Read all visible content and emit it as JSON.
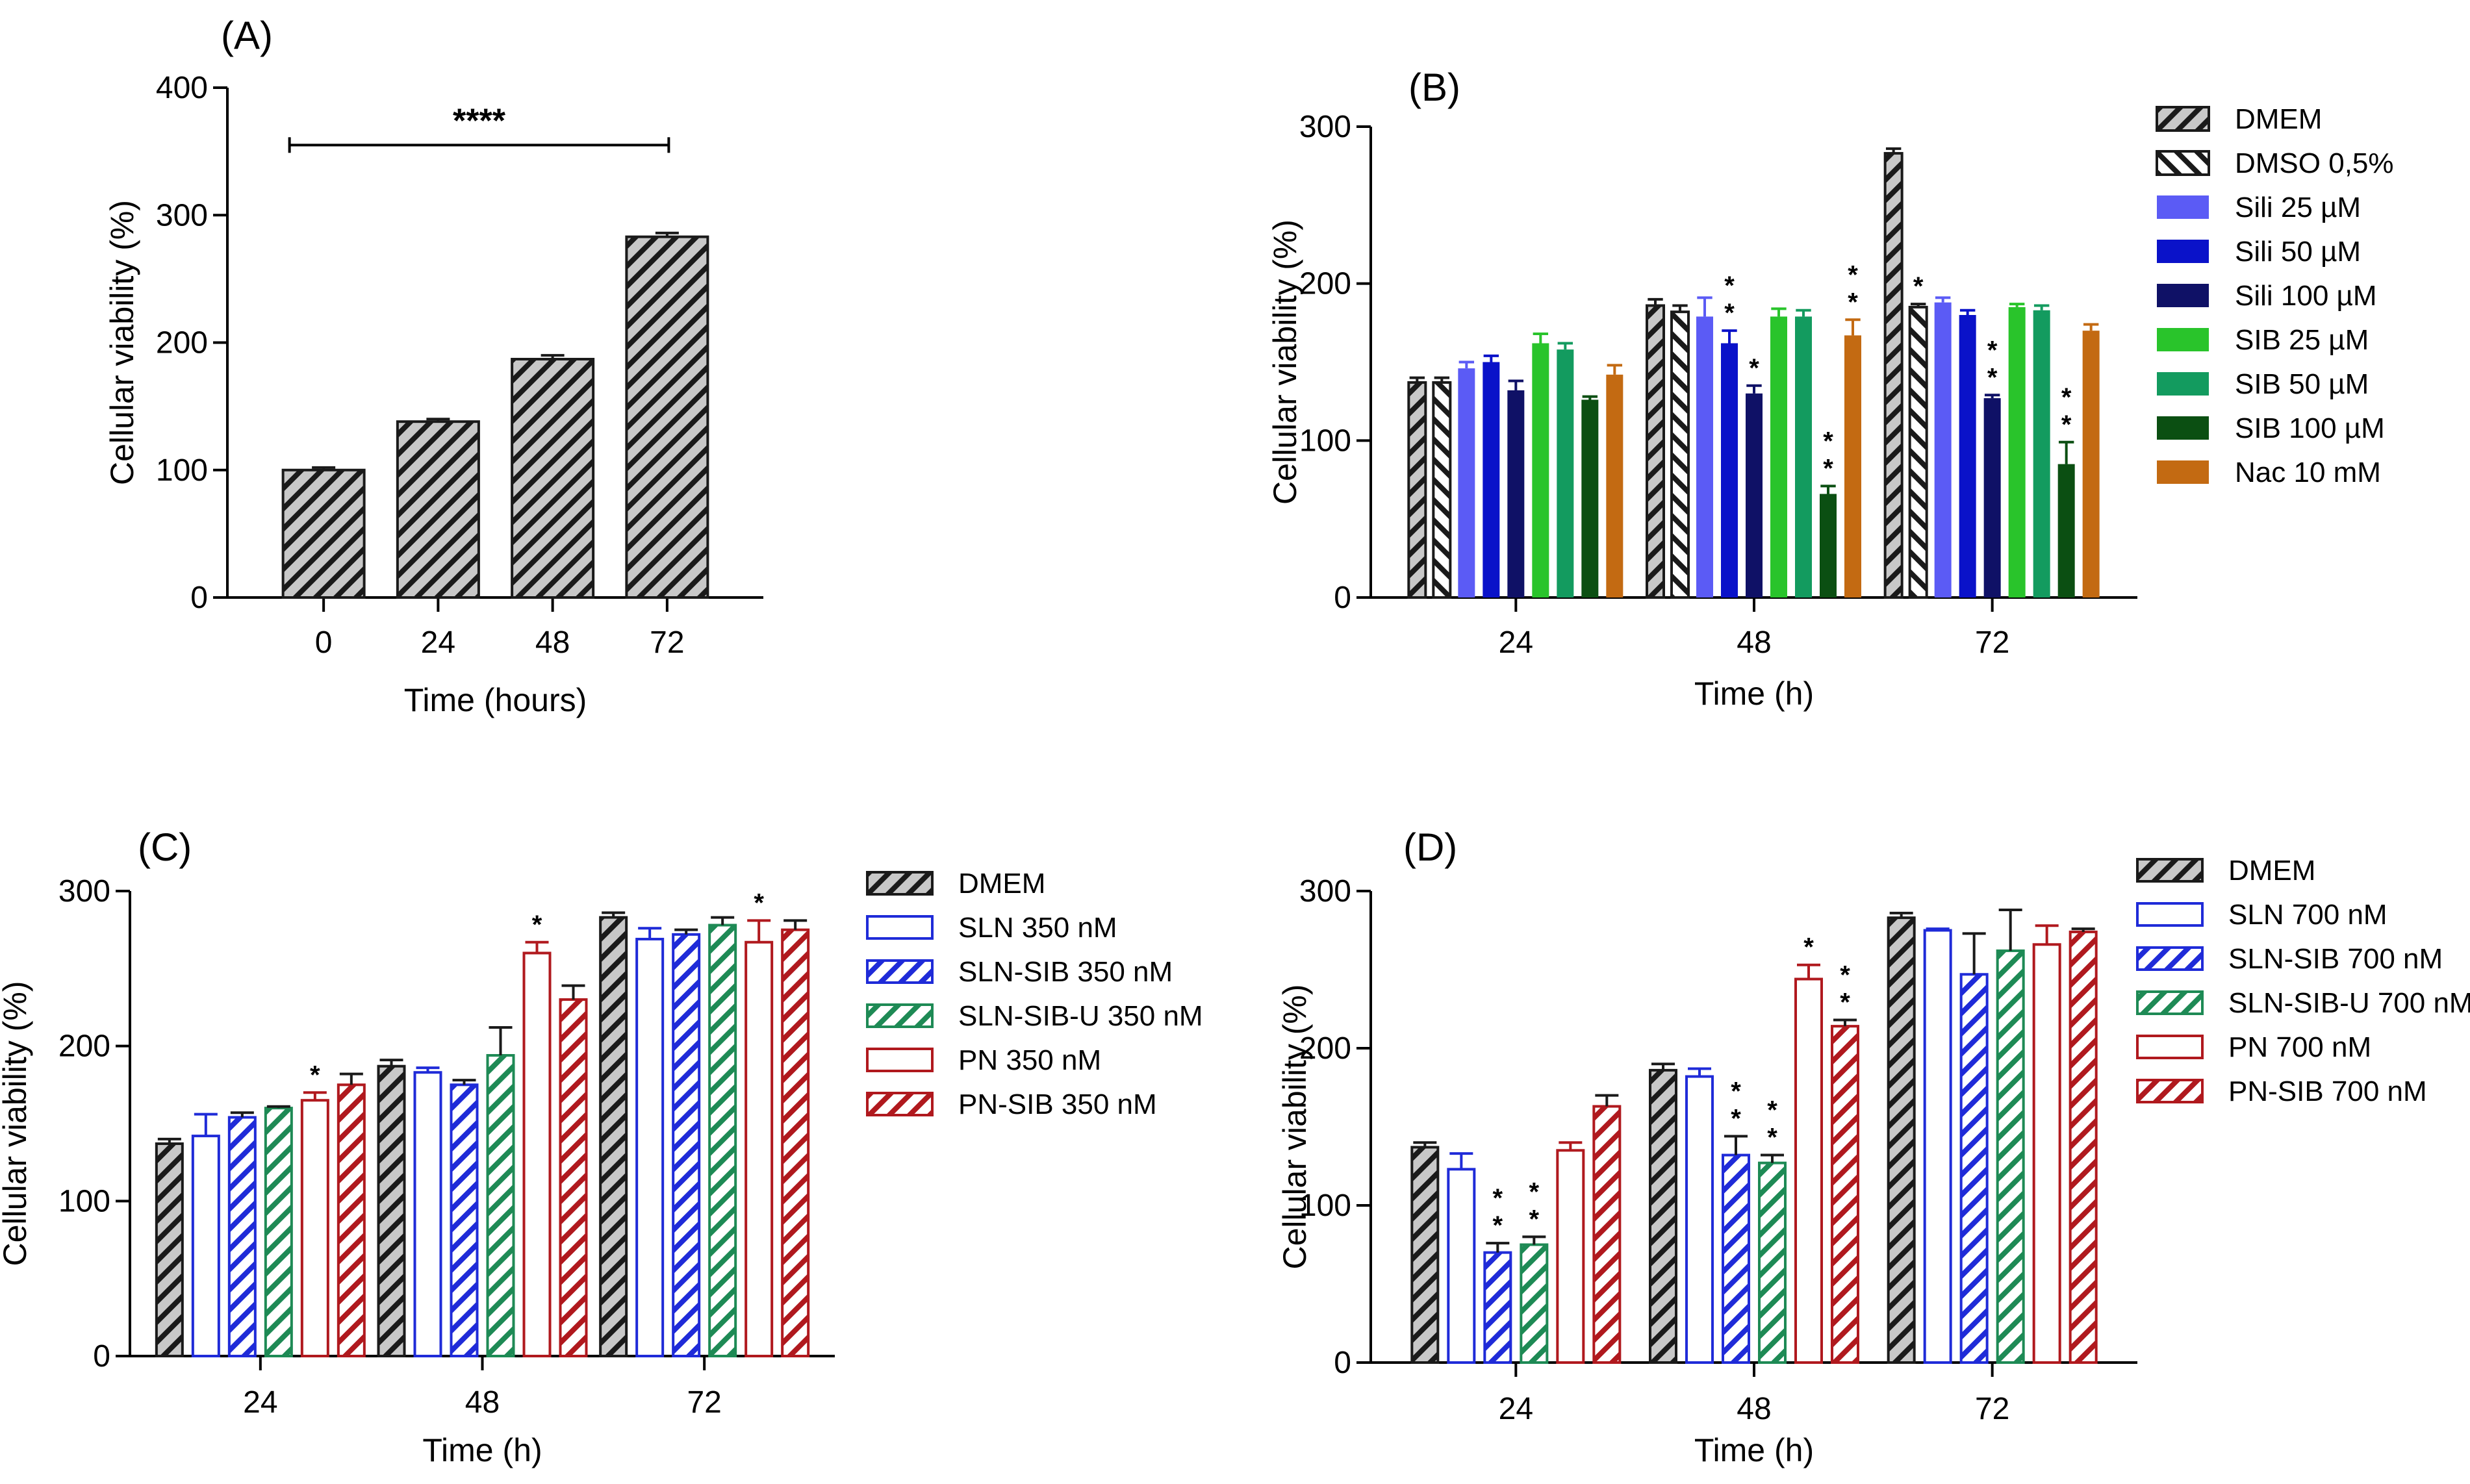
{
  "patterns": {
    "grey_hatch": {
      "bg": "#c8c8c8",
      "line": "#1a1a1a",
      "dir": "fwd"
    },
    "dmso_hatch": {
      "bg": "#ffffff",
      "line": "#1a1a1a",
      "dir": "back"
    },
    "blue_hatch": {
      "bg": "#ffffff",
      "line": "#1f2bd8",
      "dir": "fwd"
    },
    "green_hatch": {
      "bg": "#ffffff",
      "line": "#1e8a55",
      "dir": "fwd"
    },
    "red_hatch": {
      "bg": "#ffffff",
      "line": "#b0191e",
      "dir": "fwd"
    }
  },
  "chart_data": [
    {
      "panel": "(A)",
      "type": "bar",
      "xlabel": "Time (hours)",
      "ylabel": "Cellular viability (%)",
      "ylim": [
        0,
        400
      ],
      "yticks": [
        0,
        100,
        200,
        300,
        400
      ],
      "categories": [
        "0",
        "24",
        "48",
        "72"
      ],
      "series": [
        {
          "name": "",
          "style": "pattern",
          "color": "grey_hatch",
          "values": [
            100,
            138,
            187,
            283
          ],
          "errors": [
            2,
            2,
            3,
            3
          ],
          "stars": [
            0,
            0,
            0,
            0
          ]
        }
      ],
      "bracket": {
        "from": 0,
        "to": 3,
        "value": 355,
        "label": "****"
      }
    },
    {
      "panel": "(B)",
      "type": "bar",
      "xlabel": "Time (h)",
      "ylabel": "Cellular viability (%)",
      "ylim": [
        0,
        300
      ],
      "yticks": [
        0,
        100,
        200,
        300
      ],
      "categories": [
        "24",
        "48",
        "72"
      ],
      "series": [
        {
          "name": "DMEM",
          "style": "pattern",
          "color": "grey_hatch",
          "values": [
            137,
            186,
            283
          ],
          "errors": [
            3,
            4,
            3
          ],
          "stars": [
            0,
            0,
            0
          ]
        },
        {
          "name": "DMSO 0,5%",
          "style": "pattern",
          "color": "dmso_hatch",
          "values": [
            137,
            182,
            185
          ],
          "errors": [
            3,
            4,
            2
          ],
          "stars": [
            0,
            0,
            1
          ]
        },
        {
          "name": "Sili 25 µM",
          "style": "solid",
          "color": "#5b5bf5",
          "values": [
            146,
            179,
            188
          ],
          "errors": [
            4,
            12,
            3
          ],
          "stars": [
            0,
            0,
            0
          ]
        },
        {
          "name": "Sili 50 µM",
          "style": "solid",
          "color": "#0a12c9",
          "values": [
            150,
            162,
            180
          ],
          "errors": [
            4,
            8,
            3
          ],
          "stars": [
            0,
            2,
            0
          ]
        },
        {
          "name": "Sili 100 µM",
          "style": "solid",
          "color": "#0f1166",
          "values": [
            132,
            130,
            127
          ],
          "errors": [
            6,
            5,
            2
          ],
          "stars": [
            0,
            1,
            2
          ]
        },
        {
          "name": "SIB 25 µM",
          "style": "solid",
          "color": "#29c42b",
          "values": [
            162,
            179,
            185
          ],
          "errors": [
            6,
            5,
            2
          ],
          "stars": [
            0,
            0,
            0
          ]
        },
        {
          "name": "SIB 50 µM",
          "style": "solid",
          "color": "#139b5f",
          "values": [
            158,
            179,
            183
          ],
          "errors": [
            4,
            4,
            3
          ],
          "stars": [
            0,
            0,
            0
          ]
        },
        {
          "name": "SIB 100 µM",
          "style": "solid",
          "color": "#0b4f12",
          "values": [
            126,
            66,
            85
          ],
          "errors": [
            2,
            5,
            14
          ],
          "stars": [
            0,
            2,
            2
          ]
        },
        {
          "name": "Nac 10 mM",
          "style": "solid",
          "color": "#c36a12",
          "values": [
            142,
            167,
            170
          ],
          "errors": [
            6,
            10,
            4
          ],
          "stars": [
            0,
            2,
            0
          ]
        }
      ]
    },
    {
      "panel": "(C)",
      "type": "bar",
      "xlabel": "Time (h)",
      "ylabel": "Cellular viability (%)",
      "ylim": [
        0,
        300
      ],
      "yticks": [
        0,
        100,
        200,
        300
      ],
      "categories": [
        "24",
        "48",
        "72"
      ],
      "series": [
        {
          "name": "DMEM",
          "style": "pattern",
          "color": "grey_hatch",
          "values": [
            137,
            187,
            283
          ],
          "errors": [
            3,
            4,
            3
          ],
          "stars": [
            0,
            0,
            0
          ]
        },
        {
          "name": "SLN 350 nM",
          "style": "open",
          "color": "#1f2bd8",
          "values": [
            142,
            183,
            269
          ],
          "errors": [
            14,
            3,
            7
          ],
          "stars": [
            0,
            0,
            0
          ]
        },
        {
          "name": "SLN-SIB 350 nM",
          "style": "pattern",
          "color": "blue_hatch",
          "values": [
            154,
            175,
            272
          ],
          "errors": [
            3,
            3,
            3
          ],
          "stars": [
            0,
            0,
            0
          ]
        },
        {
          "name": "SLN-SIB-U 350 nM",
          "style": "pattern",
          "color": "green_hatch",
          "values": [
            160,
            194,
            278
          ],
          "errors": [
            1,
            18,
            5
          ],
          "stars": [
            0,
            0,
            0
          ]
        },
        {
          "name": "PN 350 nM",
          "style": "open",
          "color": "#b0191e",
          "values": [
            165,
            260,
            267
          ],
          "errors": [
            5,
            7,
            14
          ],
          "stars": [
            1,
            1,
            1
          ]
        },
        {
          "name": "PN-SIB 350 nM",
          "style": "pattern",
          "color": "red_hatch",
          "values": [
            175,
            230,
            275
          ],
          "errors": [
            7,
            9,
            6
          ],
          "stars": [
            0,
            0,
            0
          ]
        }
      ]
    },
    {
      "panel": "(D)",
      "type": "bar",
      "xlabel": "Time (h)",
      "ylabel": "Cellular viability (%)",
      "ylim": [
        0,
        300
      ],
      "yticks": [
        0,
        100,
        200,
        300
      ],
      "categories": [
        "24",
        "48",
        "72"
      ],
      "series": [
        {
          "name": "DMEM",
          "style": "pattern",
          "color": "grey_hatch",
          "values": [
            137,
            186,
            283
          ],
          "errors": [
            3,
            4,
            3
          ],
          "stars": [
            0,
            0,
            0
          ]
        },
        {
          "name": "SLN 700 nM",
          "style": "open",
          "color": "#1f2bd8",
          "values": [
            123,
            182,
            275
          ],
          "errors": [
            10,
            5,
            1
          ],
          "stars": [
            0,
            0,
            0
          ]
        },
        {
          "name": "SLN-SIB 700 nM",
          "style": "pattern",
          "color": "blue_hatch",
          "values": [
            70,
            132,
            247
          ],
          "errors": [
            6,
            12,
            26
          ],
          "stars": [
            2,
            2,
            0
          ]
        },
        {
          "name": "SLN-SIB-U 700 nM",
          "style": "pattern",
          "color": "green_hatch",
          "values": [
            75,
            127,
            262
          ],
          "errors": [
            5,
            5,
            26
          ],
          "stars": [
            2,
            2,
            0
          ]
        },
        {
          "name": "PN 700 nM",
          "style": "open",
          "color": "#b0191e",
          "values": [
            135,
            244,
            266
          ],
          "errors": [
            5,
            9,
            12
          ],
          "stars": [
            0,
            1,
            0
          ]
        },
        {
          "name": "PN-SIB 700 nM",
          "style": "pattern",
          "color": "red_hatch",
          "values": [
            163,
            214,
            274
          ],
          "errors": [
            7,
            4,
            2
          ],
          "stars": [
            0,
            2,
            0
          ]
        }
      ]
    }
  ]
}
